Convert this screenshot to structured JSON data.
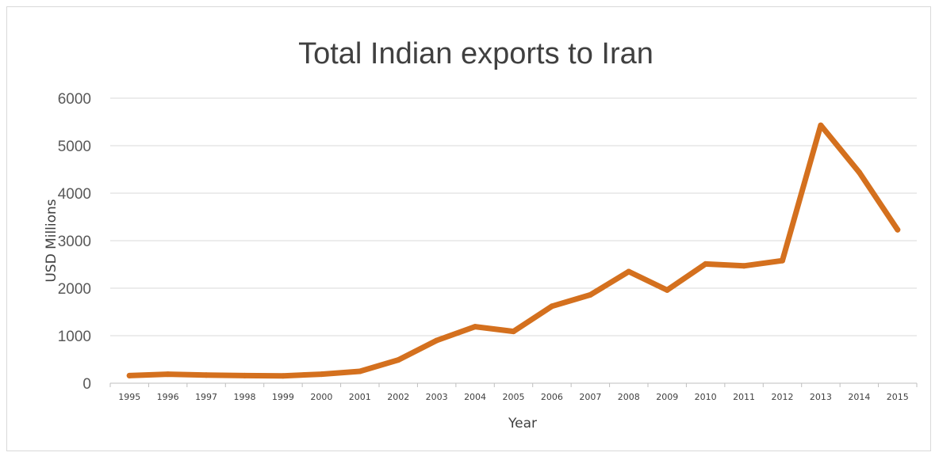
{
  "chart_data": {
    "type": "line",
    "title": "Total Indian exports to Iran",
    "xlabel": "Year",
    "ylabel": "USD Millions",
    "ylim": [
      0,
      6000
    ],
    "yticks": [
      "0",
      "1000",
      "2000",
      "3000",
      "4000",
      "5000",
      "6000"
    ],
    "grid": true,
    "legend": "none",
    "line_color": "#D4701E",
    "categories": [
      "1995",
      "1996",
      "1997",
      "1998",
      "1999",
      "2000",
      "2001",
      "2002",
      "2003",
      "2004",
      "2005",
      "2006",
      "2007",
      "2008",
      "2009",
      "2010",
      "2011",
      "2012",
      "2013",
      "2014",
      "2015"
    ],
    "series": [
      {
        "values": [
          160,
          190,
          170,
          160,
          155,
          190,
          250,
          490,
          900,
          1190,
          1090,
          1620,
          1860,
          2350,
          1960,
          2510,
          2470,
          2580,
          5430,
          4440,
          3230
        ]
      }
    ]
  }
}
